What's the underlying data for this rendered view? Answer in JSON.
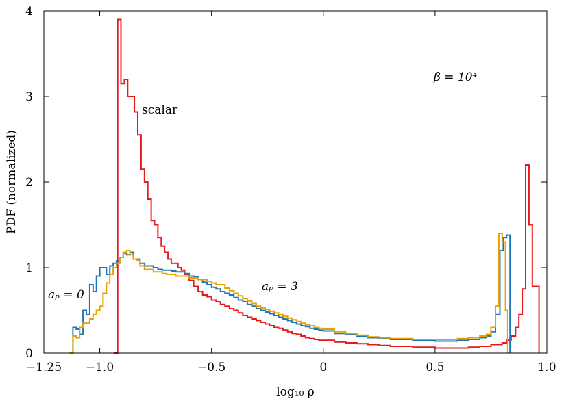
{
  "chart_data": {
    "type": "line",
    "xlabel": "log₁₀ ρ",
    "ylabel": "PDF (normalized)",
    "xlim": [
      -1.25,
      1.0
    ],
    "ylim": [
      0,
      4
    ],
    "xticks": [
      -1.25,
      -1.0,
      -0.5,
      0,
      0.5,
      1.0
    ],
    "xtick_labels": [
      "−1.25",
      "−1.0",
      "−0.5",
      "0",
      "0.5",
      "1.0"
    ],
    "yticks": [
      0,
      1,
      2,
      3,
      4
    ],
    "ytick_labels": [
      "0",
      "1",
      "2",
      "3",
      "4"
    ],
    "grid": false,
    "step": true,
    "annotations": {
      "beta": "β = 10⁴",
      "scalar": "scalar",
      "ap0": "aₚ = 0",
      "ap3": "aₚ = 3"
    },
    "series": [
      {
        "name": "scalar",
        "color": "#e41a1c",
        "x": [
          -0.935,
          -0.92,
          -0.905,
          -0.89,
          -0.875,
          -0.86,
          -0.845,
          -0.83,
          -0.815,
          -0.8,
          -0.785,
          -0.77,
          -0.755,
          -0.74,
          -0.725,
          -0.71,
          -0.695,
          -0.68,
          -0.665,
          -0.65,
          -0.635,
          -0.62,
          -0.6,
          -0.58,
          -0.56,
          -0.54,
          -0.52,
          -0.5,
          -0.48,
          -0.46,
          -0.44,
          -0.42,
          -0.4,
          -0.38,
          -0.36,
          -0.34,
          -0.32,
          -0.3,
          -0.28,
          -0.26,
          -0.24,
          -0.22,
          -0.2,
          -0.18,
          -0.16,
          -0.14,
          -0.12,
          -0.1,
          -0.08,
          -0.06,
          -0.04,
          -0.02,
          0.0,
          0.05,
          0.1,
          0.15,
          0.2,
          0.25,
          0.3,
          0.35,
          0.4,
          0.45,
          0.5,
          0.55,
          0.6,
          0.65,
          0.7,
          0.75,
          0.8,
          0.82,
          0.84,
          0.86,
          0.875,
          0.89,
          0.905,
          0.92,
          0.935,
          0.95,
          0.965
        ],
        "y": [
          0,
          3.9,
          3.15,
          3.2,
          3.0,
          3.0,
          2.82,
          2.55,
          2.15,
          2.0,
          1.8,
          1.55,
          1.5,
          1.35,
          1.25,
          1.18,
          1.1,
          1.05,
          1.05,
          1.0,
          0.97,
          0.92,
          0.85,
          0.78,
          0.72,
          0.68,
          0.66,
          0.62,
          0.6,
          0.57,
          0.55,
          0.52,
          0.5,
          0.47,
          0.44,
          0.42,
          0.4,
          0.38,
          0.36,
          0.34,
          0.32,
          0.3,
          0.29,
          0.27,
          0.25,
          0.23,
          0.22,
          0.2,
          0.18,
          0.17,
          0.16,
          0.15,
          0.15,
          0.13,
          0.12,
          0.11,
          0.1,
          0.09,
          0.08,
          0.08,
          0.07,
          0.07,
          0.06,
          0.06,
          0.06,
          0.07,
          0.08,
          0.1,
          0.12,
          0.15,
          0.2,
          0.3,
          0.45,
          0.75,
          2.2,
          1.5,
          0.78,
          0.78,
          0
        ]
      },
      {
        "name": "aₚ = 0",
        "color": "#1f78b4",
        "x": [
          -1.135,
          -1.12,
          -1.105,
          -1.09,
          -1.075,
          -1.06,
          -1.045,
          -1.03,
          -1.015,
          -1.0,
          -0.985,
          -0.97,
          -0.955,
          -0.94,
          -0.925,
          -0.91,
          -0.895,
          -0.88,
          -0.865,
          -0.85,
          -0.835,
          -0.82,
          -0.8,
          -0.78,
          -0.76,
          -0.74,
          -0.72,
          -0.7,
          -0.68,
          -0.66,
          -0.64,
          -0.62,
          -0.6,
          -0.58,
          -0.56,
          -0.54,
          -0.52,
          -0.5,
          -0.48,
          -0.46,
          -0.44,
          -0.42,
          -0.4,
          -0.38,
          -0.36,
          -0.34,
          -0.32,
          -0.3,
          -0.28,
          -0.26,
          -0.24,
          -0.22,
          -0.2,
          -0.18,
          -0.16,
          -0.14,
          -0.12,
          -0.1,
          -0.08,
          -0.06,
          -0.04,
          -0.02,
          0.0,
          0.05,
          0.1,
          0.15,
          0.2,
          0.25,
          0.3,
          0.35,
          0.4,
          0.45,
          0.5,
          0.55,
          0.6,
          0.65,
          0.7,
          0.73,
          0.75,
          0.77,
          0.79,
          0.805,
          0.82,
          0.835
        ],
        "y": [
          0,
          0.3,
          0.28,
          0.22,
          0.5,
          0.45,
          0.8,
          0.72,
          0.9,
          1.0,
          1.0,
          0.92,
          1.02,
          1.05,
          1.08,
          1.12,
          1.17,
          1.15,
          1.18,
          1.1,
          1.1,
          1.05,
          1.02,
          1.02,
          1.0,
          0.98,
          0.97,
          0.97,
          0.96,
          0.95,
          0.95,
          0.93,
          0.9,
          0.89,
          0.86,
          0.83,
          0.8,
          0.77,
          0.75,
          0.72,
          0.7,
          0.68,
          0.65,
          0.62,
          0.6,
          0.57,
          0.55,
          0.52,
          0.5,
          0.48,
          0.46,
          0.44,
          0.42,
          0.4,
          0.38,
          0.36,
          0.34,
          0.32,
          0.31,
          0.29,
          0.28,
          0.27,
          0.26,
          0.23,
          0.22,
          0.2,
          0.18,
          0.17,
          0.16,
          0.16,
          0.15,
          0.15,
          0.14,
          0.14,
          0.15,
          0.16,
          0.18,
          0.2,
          0.25,
          0.45,
          1.2,
          1.35,
          1.38,
          0
        ]
      },
      {
        "name": "aₚ = 3",
        "color": "#e6a100",
        "x": [
          -1.135,
          -1.12,
          -1.105,
          -1.09,
          -1.075,
          -1.06,
          -1.045,
          -1.03,
          -1.015,
          -1.0,
          -0.985,
          -0.97,
          -0.955,
          -0.94,
          -0.925,
          -0.91,
          -0.895,
          -0.88,
          -0.865,
          -0.85,
          -0.835,
          -0.82,
          -0.8,
          -0.78,
          -0.76,
          -0.74,
          -0.72,
          -0.7,
          -0.68,
          -0.66,
          -0.64,
          -0.62,
          -0.6,
          -0.58,
          -0.56,
          -0.54,
          -0.52,
          -0.5,
          -0.48,
          -0.46,
          -0.44,
          -0.42,
          -0.4,
          -0.38,
          -0.36,
          -0.34,
          -0.32,
          -0.3,
          -0.28,
          -0.26,
          -0.24,
          -0.22,
          -0.2,
          -0.18,
          -0.16,
          -0.14,
          -0.12,
          -0.1,
          -0.08,
          -0.06,
          -0.04,
          -0.02,
          0.0,
          0.05,
          0.1,
          0.15,
          0.2,
          0.25,
          0.3,
          0.35,
          0.4,
          0.45,
          0.5,
          0.55,
          0.6,
          0.65,
          0.7,
          0.73,
          0.75,
          0.77,
          0.785,
          0.8,
          0.815,
          0.825
        ],
        "y": [
          0,
          0.2,
          0.18,
          0.3,
          0.35,
          0.35,
          0.4,
          0.45,
          0.5,
          0.55,
          0.7,
          0.82,
          0.92,
          1.0,
          1.05,
          1.12,
          1.18,
          1.2,
          1.15,
          1.1,
          1.08,
          1.02,
          0.98,
          0.98,
          0.95,
          0.95,
          0.93,
          0.92,
          0.92,
          0.9,
          0.9,
          0.9,
          0.88,
          0.88,
          0.86,
          0.86,
          0.84,
          0.82,
          0.8,
          0.8,
          0.76,
          0.73,
          0.7,
          0.67,
          0.64,
          0.61,
          0.58,
          0.55,
          0.53,
          0.51,
          0.49,
          0.47,
          0.45,
          0.43,
          0.41,
          0.39,
          0.37,
          0.35,
          0.33,
          0.32,
          0.3,
          0.29,
          0.28,
          0.25,
          0.23,
          0.21,
          0.19,
          0.18,
          0.17,
          0.17,
          0.16,
          0.16,
          0.16,
          0.16,
          0.17,
          0.18,
          0.2,
          0.22,
          0.3,
          0.55,
          1.4,
          1.3,
          0.5,
          0
        ]
      }
    ]
  }
}
